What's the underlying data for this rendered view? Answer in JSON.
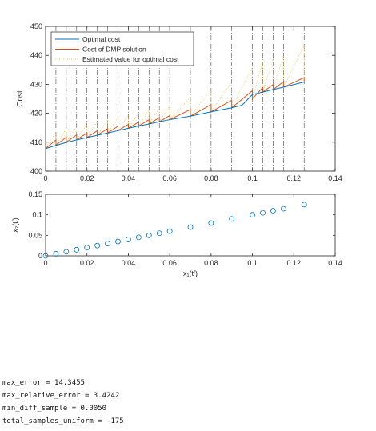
{
  "chart_data": [
    {
      "type": "line",
      "title": "",
      "xlabel": "",
      "ylabel": "Cost",
      "xlim": [
        0,
        0.14
      ],
      "ylim": [
        400,
        450
      ],
      "xticks": [
        "0",
        "0.02",
        "0.04",
        "0.06",
        "0.08",
        "0.1",
        "0.12",
        "0.14"
      ],
      "yticks": [
        "400",
        "410",
        "420",
        "430",
        "440",
        "450"
      ],
      "grid": false,
      "legend_position": "top-left",
      "switch_points_x": [
        0.005,
        0.01,
        0.015,
        0.02,
        0.025,
        0.03,
        0.035,
        0.04,
        0.045,
        0.05,
        0.055,
        0.06,
        0.07,
        0.08,
        0.09,
        0.1,
        0.105,
        0.11,
        0.115,
        0.125
      ],
      "series": [
        {
          "name": "Optimal cost",
          "color": "#0072BD",
          "x": [
            0,
            0.005,
            0.01,
            0.015,
            0.02,
            0.025,
            0.03,
            0.035,
            0.04,
            0.045,
            0.05,
            0.055,
            0.06,
            0.07,
            0.08,
            0.09,
            0.095,
            0.1,
            0.105,
            0.11,
            0.115,
            0.12,
            0.125
          ],
          "y": [
            407.8,
            408.9,
            409.9,
            410.8,
            411.6,
            412.4,
            413.2,
            414.0,
            414.8,
            415.6,
            416.3,
            417.1,
            417.8,
            419.0,
            420.5,
            421.9,
            422.8,
            426.5,
            427.3,
            428.2,
            429.0,
            429.9,
            430.8
          ]
        },
        {
          "name": "Cost of DMP solution",
          "color": "#D95319",
          "x": [
            0,
            0.005,
            0.005,
            0.01,
            0.01,
            0.015,
            0.015,
            0.02,
            0.02,
            0.025,
            0.025,
            0.03,
            0.03,
            0.035,
            0.035,
            0.04,
            0.04,
            0.045,
            0.045,
            0.05,
            0.05,
            0.055,
            0.055,
            0.06,
            0.06,
            0.07,
            0.07,
            0.08,
            0.08,
            0.09,
            0.09,
            0.1,
            0.1,
            0.105,
            0.105,
            0.11,
            0.11,
            0.115,
            0.115,
            0.125,
            0.125
          ],
          "y": [
            407.8,
            410.8,
            409.0,
            411.7,
            410.0,
            412.5,
            410.8,
            413.2,
            411.6,
            414.0,
            412.4,
            414.7,
            413.2,
            415.5,
            414.0,
            416.2,
            414.8,
            417.0,
            415.6,
            417.8,
            416.3,
            418.5,
            417.1,
            419.2,
            417.8,
            421.3,
            419.0,
            423.0,
            420.5,
            424.5,
            421.9,
            427.8,
            425.0,
            428.9,
            427.3,
            429.9,
            428.2,
            430.9,
            429.0,
            432.3,
            431.0
          ]
        },
        {
          "name": "Estimated value for optimal cost",
          "color": "#EDB120",
          "style": "dotted",
          "x": [
            0,
            0.005,
            0.005,
            0.01,
            0.01,
            0.015,
            0.015,
            0.02,
            0.02,
            0.025,
            0.025,
            0.03,
            0.03,
            0.035,
            0.035,
            0.04,
            0.04,
            0.045,
            0.045,
            0.05,
            0.05,
            0.055,
            0.055,
            0.06,
            0.06,
            0.07,
            0.07,
            0.08,
            0.08,
            0.09,
            0.09,
            0.1,
            0.1,
            0.105,
            0.105,
            0.11,
            0.11,
            0.115,
            0.115,
            0.125,
            0.125
          ],
          "y": [
            407.8,
            413.5,
            409.0,
            414.5,
            410.0,
            415.4,
            410.8,
            416.2,
            411.6,
            417.0,
            412.4,
            417.8,
            413.2,
            418.6,
            414.0,
            419.4,
            414.8,
            420.2,
            415.6,
            421.0,
            416.3,
            421.8,
            417.1,
            422.6,
            417.8,
            425.4,
            419.0,
            428.0,
            420.5,
            430.8,
            421.9,
            436.0,
            425.0,
            437.8,
            427.3,
            439.0,
            428.2,
            440.0,
            429.0,
            443.5,
            431.0
          ]
        }
      ]
    },
    {
      "type": "scatter",
      "title": "",
      "xlabel": "x₁(tᶠ)",
      "ylabel": "x₂(tᶠ)",
      "xlim": [
        0,
        0.14
      ],
      "ylim": [
        0,
        0.15
      ],
      "xticks": [
        "0",
        "0.02",
        "0.04",
        "0.06",
        "0.08",
        "0.1",
        "0.12",
        "0.14"
      ],
      "yticks": [
        "0",
        "0.05",
        "0.1",
        "0.15"
      ],
      "grid": false,
      "marker_color": "#0072BD",
      "marker": "circle-open",
      "series": [
        {
          "x": [
            0,
            0.005,
            0.01,
            0.015,
            0.02,
            0.025,
            0.03,
            0.035,
            0.04,
            0.045,
            0.05,
            0.055,
            0.06,
            0.07,
            0.08,
            0.09,
            0.1,
            0.105,
            0.11,
            0.115,
            0.125
          ],
          "y": [
            0,
            0.005,
            0.01,
            0.015,
            0.02,
            0.025,
            0.03,
            0.035,
            0.04,
            0.045,
            0.05,
            0.055,
            0.06,
            0.07,
            0.08,
            0.09,
            0.1,
            0.105,
            0.11,
            0.115,
            0.125
          ]
        }
      ]
    }
  ],
  "console": {
    "lines": [
      "max_error = 14.3455",
      "max_relative_error = 3.4242",
      "min_diff_sample = 0.0050",
      "total_samples_uniform = -175"
    ]
  }
}
